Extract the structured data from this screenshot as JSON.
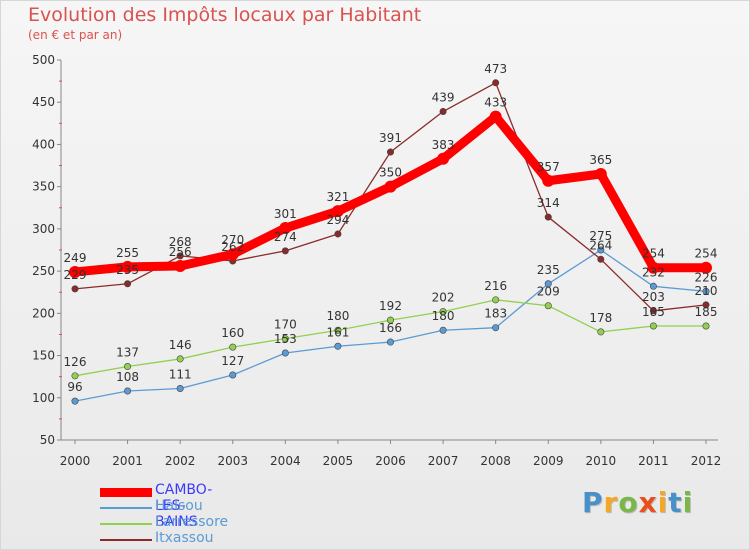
{
  "title": "Evolution des Impôts locaux par Habitant",
  "subtitle": "(en € et par an)",
  "logo": {
    "letters": [
      "P",
      "r",
      "o",
      "x",
      "i",
      "t",
      "i"
    ],
    "colors": [
      "#4a90c8",
      "#f5a623",
      "#7ab648",
      "#e94e1b",
      "#f5a623",
      "#4a90c8",
      "#7ab648"
    ]
  },
  "chart_data": {
    "type": "line",
    "categories": [
      "2000",
      "2001",
      "2002",
      "2003",
      "2004",
      "2005",
      "2006",
      "2007",
      "2008",
      "2009",
      "2010",
      "2011",
      "2012"
    ],
    "ylim": [
      50,
      500
    ],
    "yticks": [
      "500",
      "450",
      "400",
      "350",
      "300",
      "250",
      "200",
      "150",
      "100",
      "50"
    ],
    "grid": false,
    "series": [
      {
        "name": "CAMBO-LES-BAINS",
        "values": [
          249,
          255,
          256,
          270,
          301,
          321,
          350,
          383,
          433,
          357,
          365,
          254,
          254
        ],
        "labels": [
          "249",
          "255",
          "256",
          "270",
          "301",
          "321",
          "350",
          "383",
          "433",
          "357",
          "365",
          "254",
          "254"
        ],
        "color": "#ff0000",
        "legend_color": "#3a3aff"
      },
      {
        "name": "Halsou",
        "values": [
          96,
          108,
          111,
          127,
          153,
          161,
          166,
          180,
          183,
          235,
          275,
          232,
          226
        ],
        "labels": [
          "96",
          "108",
          "111",
          "127",
          "153",
          "161",
          "166",
          "180",
          "183",
          "235",
          "275",
          "232",
          "226"
        ],
        "color": "#5b9bd5",
        "legend_color": "#5b9bd5"
      },
      {
        "name": "Larressore",
        "values": [
          126,
          137,
          146,
          160,
          170,
          180,
          192,
          202,
          216,
          209,
          178,
          185,
          185
        ],
        "labels": [
          "126",
          "137",
          "146",
          "160",
          "170",
          "180",
          "192",
          "202",
          "216",
          "209",
          "178",
          "185",
          "185"
        ],
        "color": "#92d050",
        "legend_color": "#5b9bd5"
      },
      {
        "name": "Itxassou",
        "values": [
          229,
          235,
          268,
          262,
          274,
          294,
          391,
          439,
          473,
          314,
          264,
          203,
          210
        ],
        "labels": [
          "229",
          "235",
          "268",
          "262",
          "274",
          "294",
          "391",
          "439",
          "473",
          "314",
          "264",
          "203",
          "210"
        ],
        "color": "#8b2a2a",
        "legend_color": "#5b9bd5"
      }
    ]
  }
}
